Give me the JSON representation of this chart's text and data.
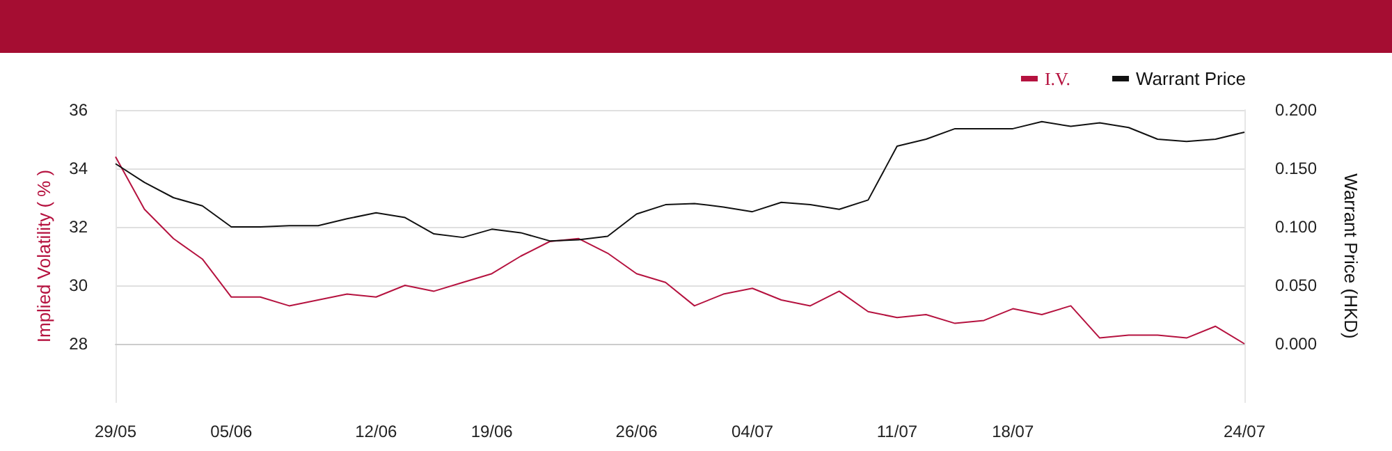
{
  "chart_data": {
    "type": "line",
    "ylabel": "Implied Volatility ( % )",
    "y2label": "Warrant Price (HKD)",
    "categories": [
      "29/05",
      null,
      null,
      null,
      "05/06",
      null,
      null,
      null,
      null,
      "12/06",
      null,
      null,
      null,
      "19/06",
      null,
      null,
      null,
      null,
      "26/06",
      null,
      null,
      null,
      "04/07",
      null,
      null,
      null,
      null,
      "11/07",
      null,
      null,
      null,
      "18/07",
      null,
      null,
      null,
      null,
      null,
      null,
      null,
      "24/07"
    ],
    "series": [
      {
        "name": "I.V.",
        "color": "#b5123f",
        "values": [
          34.4,
          32.6,
          31.6,
          30.9,
          29.6,
          29.6,
          29.3,
          29.5,
          29.7,
          29.6,
          30.0,
          29.8,
          30.1,
          30.4,
          31.0,
          31.5,
          31.6,
          31.1,
          30.4,
          30.1,
          29.3,
          29.7,
          29.9,
          29.5,
          29.3,
          29.8,
          29.1,
          28.9,
          29.0,
          28.7,
          28.8,
          29.2,
          29.0,
          29.3,
          28.2,
          28.3,
          28.3,
          28.2,
          28.6,
          28.0
        ]
      },
      {
        "name": "Warrant Price",
        "color": "#111111",
        "axis": "y2",
        "values": [
          0.154,
          0.138,
          0.125,
          0.118,
          0.1,
          0.1,
          0.101,
          0.101,
          0.107,
          0.112,
          0.108,
          0.094,
          0.091,
          0.098,
          0.095,
          0.088,
          0.089,
          0.092,
          0.111,
          0.119,
          0.12,
          0.117,
          0.113,
          0.121,
          0.119,
          0.115,
          0.123,
          0.169,
          0.175,
          0.184,
          0.184,
          0.184,
          0.19,
          0.186,
          0.189,
          0.185,
          0.175,
          0.173,
          0.175,
          0.181
        ]
      }
    ],
    "ylim": [
      26,
      36
    ],
    "yticks": [
      28,
      30,
      32,
      34,
      36
    ],
    "y2lim": [
      -0.05,
      0.2
    ],
    "y2ticks": [
      {
        "value": 0,
        "label": "0.000"
      },
      {
        "value": 0.05,
        "label": "0.050"
      },
      {
        "value": 0.1,
        "label": "0.100"
      },
      {
        "value": 0.15,
        "label": "0.150"
      },
      {
        "value": 0.2,
        "label": "0.200"
      }
    ],
    "grid": "y",
    "legend": "top right",
    "marker": "none",
    "line_style": "solid"
  }
}
